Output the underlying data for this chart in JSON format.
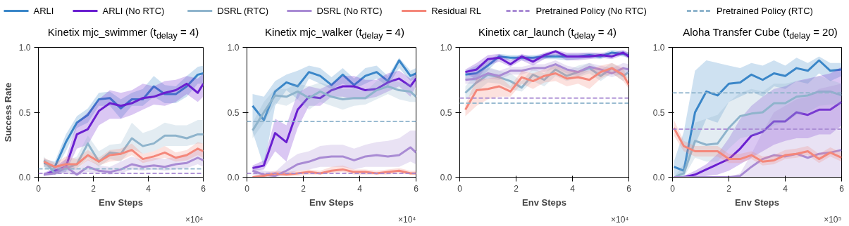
{
  "chart_data": [
    {
      "type": "line",
      "title": "Kinetix mjc_swimmer (t$_{delay}$ = 4)",
      "xlabel": "Env Steps",
      "ylabel": "Success Rate",
      "annotations": [
        "×10⁴"
      ],
      "legend": "top",
      "xlim": [
        0,
        6
      ],
      "xticks": [
        0,
        2,
        4,
        6
      ],
      "ylim": [
        0,
        1
      ],
      "yticks": [
        {
          "value": 0,
          "label": "0.0"
        },
        {
          "value": 0.5,
          "label": "0.5"
        },
        {
          "value": 1,
          "label": "1.0"
        }
      ],
      "x": [
        0.2,
        0.6,
        1.0,
        1.4,
        1.8,
        2.2,
        2.6,
        3.0,
        3.4,
        3.8,
        4.2,
        4.6,
        5.0,
        5.4,
        5.8,
        6.0
      ],
      "series": [
        {
          "name": "ARLI",
          "color": "#3a86c8",
          "values": [
            0.11,
            0.08,
            0.27,
            0.42,
            0.48,
            0.6,
            0.61,
            0.53,
            0.6,
            0.6,
            0.7,
            0.64,
            0.64,
            0.7,
            0.79,
            0.8
          ],
          "lower": [
            0.08,
            0.05,
            0.2,
            0.38,
            0.42,
            0.55,
            0.55,
            0.45,
            0.55,
            0.55,
            0.62,
            0.57,
            0.57,
            0.62,
            0.72,
            0.72
          ],
          "upper": [
            0.14,
            0.12,
            0.33,
            0.47,
            0.53,
            0.65,
            0.66,
            0.6,
            0.65,
            0.68,
            0.78,
            0.71,
            0.7,
            0.78,
            0.85,
            0.86
          ]
        },
        {
          "name": "ARLI (No RTC)",
          "color": "#6a1fd0",
          "values": [
            0.02,
            0.05,
            0.08,
            0.33,
            0.37,
            0.51,
            0.57,
            0.55,
            0.57,
            0.61,
            0.62,
            0.65,
            0.67,
            0.72,
            0.65,
            0.72
          ],
          "lower": [
            0.01,
            0.03,
            0.04,
            0.22,
            0.25,
            0.4,
            0.45,
            0.45,
            0.48,
            0.52,
            0.56,
            0.55,
            0.58,
            0.64,
            0.58,
            0.62
          ],
          "upper": [
            0.03,
            0.08,
            0.14,
            0.42,
            0.5,
            0.6,
            0.67,
            0.65,
            0.67,
            0.72,
            0.7,
            0.74,
            0.75,
            0.78,
            0.76,
            0.8
          ]
        },
        {
          "name": "DSRL (RTC)",
          "color": "#8fb4cc",
          "values": [
            0.13,
            0.03,
            0.07,
            0.1,
            0.26,
            0.12,
            0.19,
            0.18,
            0.3,
            0.24,
            0.26,
            0.32,
            0.32,
            0.3,
            0.33,
            0.33
          ],
          "lower": [
            0.08,
            0.02,
            0.04,
            0.06,
            0.15,
            0.08,
            0.14,
            0.12,
            0.22,
            0.18,
            0.2,
            0.24,
            0.24,
            0.24,
            0.26,
            0.26
          ],
          "upper": [
            0.16,
            0.06,
            0.12,
            0.16,
            0.32,
            0.2,
            0.25,
            0.26,
            0.42,
            0.34,
            0.37,
            0.42,
            0.4,
            0.4,
            0.44,
            0.44
          ]
        },
        {
          "name": "DSRL (No RTC)",
          "color": "#a98bd4",
          "values": [
            0.02,
            0.03,
            0.08,
            0.02,
            0.08,
            0.05,
            0.04,
            0.06,
            0.1,
            0.08,
            0.09,
            0.08,
            0.1,
            0.11,
            0.15,
            0.13
          ],
          "lower": [
            0.01,
            0.02,
            0.03,
            0.01,
            0.04,
            0.03,
            0.02,
            0.03,
            0.06,
            0.05,
            0.06,
            0.05,
            0.06,
            0.07,
            0.1,
            0.08
          ],
          "upper": [
            0.04,
            0.05,
            0.14,
            0.06,
            0.14,
            0.09,
            0.08,
            0.12,
            0.16,
            0.13,
            0.15,
            0.14,
            0.16,
            0.18,
            0.22,
            0.2
          ]
        },
        {
          "name": "Residual RL",
          "color": "#f4877a",
          "values": [
            0.12,
            0.08,
            0.1,
            0.1,
            0.17,
            0.12,
            0.17,
            0.18,
            0.21,
            0.14,
            0.16,
            0.19,
            0.15,
            0.17,
            0.22,
            0.2
          ],
          "lower": [
            0.09,
            0.06,
            0.06,
            0.07,
            0.13,
            0.09,
            0.12,
            0.13,
            0.17,
            0.11,
            0.13,
            0.15,
            0.12,
            0.13,
            0.17,
            0.15
          ],
          "upper": [
            0.15,
            0.11,
            0.16,
            0.14,
            0.21,
            0.15,
            0.21,
            0.22,
            0.26,
            0.18,
            0.2,
            0.24,
            0.19,
            0.21,
            0.27,
            0.26
          ]
        }
      ],
      "ref_lines": [
        {
          "axis": "y",
          "value": 0.03,
          "label": "Pretrained Policy (No RTC)",
          "color": "#a98bd4",
          "line_style": "dashed"
        },
        {
          "axis": "y",
          "value": 0.065,
          "label": "Pretrained Policy (RTC)",
          "color": "#8fb4cc",
          "line_style": "dashed"
        }
      ]
    },
    {
      "type": "line",
      "title": "Kinetix mjc_walker (t$_{delay}$ = 4)",
      "xlabel": "Env Steps",
      "annotations": [
        "×10⁴"
      ],
      "xlim": [
        0,
        6
      ],
      "xticks": [
        0,
        2,
        4,
        6
      ],
      "ylim": [
        0,
        1
      ],
      "yticks": [
        {
          "value": 0,
          "label": "0.0"
        },
        {
          "value": 0.5,
          "label": "0.5"
        },
        {
          "value": 1,
          "label": "1.0"
        }
      ],
      "x": [
        0.2,
        0.6,
        1.0,
        1.4,
        1.8,
        2.2,
        2.6,
        3.0,
        3.4,
        3.8,
        4.2,
        4.6,
        5.0,
        5.4,
        5.8,
        6.0
      ],
      "series": [
        {
          "color": "#3a86c8",
          "values": [
            0.55,
            0.44,
            0.66,
            0.73,
            0.7,
            0.81,
            0.78,
            0.71,
            0.79,
            0.71,
            0.78,
            0.81,
            0.74,
            0.9,
            0.78,
            0.8
          ],
          "lower": [
            0.35,
            0.08,
            0.55,
            0.67,
            0.6,
            0.76,
            0.72,
            0.68,
            0.72,
            0.68,
            0.72,
            0.76,
            0.7,
            0.84,
            0.74,
            0.76
          ],
          "upper": [
            0.64,
            0.62,
            0.74,
            0.79,
            0.82,
            0.86,
            0.84,
            0.77,
            0.84,
            0.76,
            0.84,
            0.86,
            0.78,
            0.92,
            0.82,
            0.84
          ]
        },
        {
          "color": "#6a1fd0",
          "values": [
            0.07,
            0.09,
            0.34,
            0.27,
            0.52,
            0.62,
            0.61,
            0.67,
            0.7,
            0.7,
            0.67,
            0.68,
            0.73,
            0.76,
            0.7,
            0.76
          ],
          "lower": [
            0.05,
            0.06,
            0.2,
            0.12,
            0.38,
            0.55,
            0.55,
            0.62,
            0.62,
            0.6,
            0.6,
            0.62,
            0.66,
            0.7,
            0.62,
            0.7
          ],
          "upper": [
            0.09,
            0.13,
            0.45,
            0.4,
            0.65,
            0.7,
            0.68,
            0.72,
            0.78,
            0.78,
            0.75,
            0.75,
            0.8,
            0.82,
            0.76,
            0.8
          ]
        },
        {
          "color": "#8fb4cc",
          "values": [
            0.36,
            0.5,
            0.63,
            0.62,
            0.66,
            0.61,
            0.66,
            0.62,
            0.6,
            0.61,
            0.61,
            0.67,
            0.7,
            0.67,
            0.66,
            0.62
          ],
          "lower": [
            0.3,
            0.42,
            0.57,
            0.55,
            0.6,
            0.52,
            0.58,
            0.55,
            0.52,
            0.55,
            0.56,
            0.6,
            0.64,
            0.6,
            0.58,
            0.58
          ],
          "upper": [
            0.42,
            0.58,
            0.68,
            0.68,
            0.72,
            0.7,
            0.73,
            0.7,
            0.68,
            0.68,
            0.66,
            0.74,
            0.76,
            0.73,
            0.72,
            0.67
          ]
        },
        {
          "color": "#a98bd4",
          "values": [
            0.05,
            0.02,
            0.01,
            0.05,
            0.1,
            0.12,
            0.15,
            0.16,
            0.16,
            0.13,
            0.16,
            0.17,
            0.16,
            0.17,
            0.23,
            0.19
          ],
          "lower": [
            0.02,
            0.0,
            0.0,
            0.02,
            0.05,
            0.06,
            0.08,
            0.08,
            0.08,
            0.06,
            0.08,
            0.08,
            0.08,
            0.08,
            0.12,
            0.1
          ],
          "upper": [
            0.08,
            0.05,
            0.04,
            0.12,
            0.18,
            0.2,
            0.24,
            0.25,
            0.25,
            0.22,
            0.25,
            0.27,
            0.28,
            0.3,
            0.36,
            0.36
          ]
        },
        {
          "color": "#f4877a",
          "values": [
            0.0,
            0.01,
            0.03,
            0.02,
            0.03,
            0.04,
            0.03,
            0.05,
            0.06,
            0.04,
            0.04,
            0.03,
            0.04,
            0.05,
            0.03,
            0.03
          ],
          "lower": [
            0.0,
            0.0,
            0.01,
            0.01,
            0.01,
            0.02,
            0.02,
            0.03,
            0.04,
            0.02,
            0.02,
            0.02,
            0.02,
            0.03,
            0.02,
            0.02
          ],
          "upper": [
            0.01,
            0.03,
            0.05,
            0.04,
            0.05,
            0.06,
            0.05,
            0.08,
            0.09,
            0.06,
            0.06,
            0.05,
            0.06,
            0.07,
            0.05,
            0.05
          ]
        }
      ],
      "ref_lines": [
        {
          "axis": "y",
          "value": 0.03,
          "color": "#a98bd4",
          "line_style": "dashed"
        },
        {
          "axis": "y",
          "value": 0.43,
          "color": "#8fb4cc",
          "line_style": "dashed"
        }
      ]
    },
    {
      "type": "line",
      "title": "Kinetix car_launch (t$_{delay}$ = 4)",
      "xlabel": "Env Steps",
      "annotations": [
        "×10⁴"
      ],
      "xlim": [
        0,
        6
      ],
      "xticks": [
        0,
        2,
        4,
        6
      ],
      "ylim": [
        0,
        1
      ],
      "yticks": [
        {
          "value": 0,
          "label": "0.0"
        },
        {
          "value": 0.5,
          "label": "0.5"
        },
        {
          "value": 1,
          "label": "1.0"
        }
      ],
      "x": [
        0.2,
        0.6,
        1.0,
        1.4,
        1.8,
        2.2,
        2.6,
        3.0,
        3.4,
        3.8,
        4.2,
        4.6,
        5.0,
        5.4,
        5.8,
        6.0
      ],
      "series": [
        {
          "color": "#3a86c8",
          "values": [
            0.79,
            0.8,
            0.86,
            0.93,
            0.92,
            0.92,
            0.92,
            0.93,
            0.93,
            0.93,
            0.93,
            0.94,
            0.93,
            0.96,
            0.95,
            0.94
          ],
          "lower": [
            0.75,
            0.74,
            0.82,
            0.91,
            0.9,
            0.9,
            0.89,
            0.91,
            0.91,
            0.9,
            0.91,
            0.92,
            0.91,
            0.94,
            0.93,
            0.92
          ],
          "upper": [
            0.82,
            0.86,
            0.9,
            0.95,
            0.94,
            0.94,
            0.94,
            0.95,
            0.95,
            0.95,
            0.95,
            0.96,
            0.95,
            0.98,
            0.97,
            0.96
          ]
        },
        {
          "color": "#6a1fd0",
          "values": [
            0.81,
            0.83,
            0.91,
            0.92,
            0.87,
            0.93,
            0.89,
            0.94,
            0.97,
            0.93,
            0.93,
            0.93,
            0.94,
            0.93,
            0.96,
            0.93
          ],
          "lower": [
            0.8,
            0.75,
            0.86,
            0.89,
            0.85,
            0.9,
            0.86,
            0.91,
            0.94,
            0.9,
            0.9,
            0.91,
            0.92,
            0.91,
            0.94,
            0.91
          ],
          "upper": [
            0.83,
            0.88,
            0.94,
            0.95,
            0.9,
            0.95,
            0.92,
            0.96,
            0.98,
            0.96,
            0.96,
            0.96,
            0.96,
            0.96,
            0.98,
            0.96
          ]
        },
        {
          "color": "#8fb4cc",
          "values": [
            0.65,
            0.73,
            0.79,
            0.77,
            0.74,
            0.69,
            0.79,
            0.75,
            0.83,
            0.78,
            0.81,
            0.84,
            0.78,
            0.84,
            0.78,
            0.81
          ],
          "lower": [
            0.6,
            0.66,
            0.73,
            0.72,
            0.68,
            0.66,
            0.74,
            0.7,
            0.78,
            0.74,
            0.77,
            0.8,
            0.74,
            0.8,
            0.74,
            0.77
          ],
          "upper": [
            0.7,
            0.8,
            0.85,
            0.82,
            0.8,
            0.74,
            0.84,
            0.8,
            0.88,
            0.82,
            0.86,
            0.88,
            0.83,
            0.88,
            0.83,
            0.85
          ]
        },
        {
          "color": "#a98bd4",
          "values": [
            0.75,
            0.76,
            0.8,
            0.78,
            0.82,
            0.82,
            0.84,
            0.84,
            0.87,
            0.83,
            0.81,
            0.85,
            0.83,
            0.8,
            0.84,
            0.83
          ],
          "lower": [
            0.72,
            0.72,
            0.76,
            0.75,
            0.79,
            0.79,
            0.82,
            0.81,
            0.84,
            0.8,
            0.78,
            0.82,
            0.8,
            0.77,
            0.8,
            0.79
          ],
          "upper": [
            0.78,
            0.8,
            0.84,
            0.82,
            0.85,
            0.85,
            0.87,
            0.87,
            0.9,
            0.86,
            0.84,
            0.88,
            0.86,
            0.84,
            0.88,
            0.87
          ]
        },
        {
          "color": "#f4877a",
          "values": [
            0.52,
            0.67,
            0.68,
            0.7,
            0.66,
            0.77,
            0.74,
            0.78,
            0.8,
            0.76,
            0.77,
            0.75,
            0.81,
            0.84,
            0.79,
            0.71
          ],
          "lower": [
            0.47,
            0.55,
            0.6,
            0.62,
            0.62,
            0.72,
            0.68,
            0.73,
            0.74,
            0.7,
            0.72,
            0.68,
            0.76,
            0.8,
            0.74,
            0.68
          ],
          "upper": [
            0.56,
            0.76,
            0.76,
            0.78,
            0.7,
            0.82,
            0.8,
            0.83,
            0.86,
            0.82,
            0.82,
            0.82,
            0.86,
            0.88,
            0.84,
            0.74
          ]
        }
      ],
      "ref_lines": [
        {
          "axis": "y",
          "value": 0.61,
          "color": "#a98bd4",
          "line_style": "dashed"
        },
        {
          "axis": "y",
          "value": 0.57,
          "color": "#8fb4cc",
          "line_style": "dashed"
        }
      ]
    },
    {
      "type": "line",
      "title": "Aloha Transfer Cube (t$_{delay}$ = 20)",
      "xlabel": "Env Steps",
      "annotations": [
        "×10⁵"
      ],
      "xlim": [
        0,
        6
      ],
      "xticks": [
        0,
        2,
        4,
        6
      ],
      "ylim": [
        0,
        1
      ],
      "yticks": [
        {
          "value": 0,
          "label": "0.0"
        },
        {
          "value": 0.5,
          "label": "0.5"
        },
        {
          "value": 1,
          "label": "1.0"
        }
      ],
      "x": [
        0.05,
        0.4,
        0.8,
        1.2,
        1.6,
        2.0,
        2.4,
        2.8,
        3.2,
        3.6,
        4.0,
        4.4,
        4.8,
        5.2,
        5.6,
        6.0
      ],
      "series": [
        {
          "color": "#3a86c8",
          "values": [
            0.08,
            0.05,
            0.5,
            0.66,
            0.63,
            0.72,
            0.73,
            0.79,
            0.75,
            0.8,
            0.78,
            0.84,
            0.82,
            0.9,
            0.82,
            0.83
          ],
          "lower": [
            0.02,
            0.0,
            0.25,
            0.45,
            0.42,
            0.58,
            0.62,
            0.66,
            0.62,
            0.7,
            0.68,
            0.74,
            0.72,
            0.8,
            0.74,
            0.78
          ],
          "upper": [
            0.12,
            0.35,
            0.82,
            0.9,
            0.88,
            0.86,
            0.84,
            0.88,
            0.86,
            0.9,
            0.86,
            0.92,
            0.88,
            0.93,
            0.88,
            0.88
          ]
        },
        {
          "color": "#6a1fd0",
          "values": [
            0.0,
            0.0,
            0.02,
            0.06,
            0.1,
            0.14,
            0.22,
            0.32,
            0.35,
            0.43,
            0.43,
            0.5,
            0.48,
            0.52,
            0.52,
            0.58
          ],
          "lower": [
            0.0,
            0.0,
            0.0,
            0.01,
            0.02,
            0.05,
            0.1,
            0.15,
            0.2,
            0.25,
            0.28,
            0.3,
            0.3,
            0.33,
            0.33,
            0.4
          ],
          "upper": [
            0.0,
            0.01,
            0.05,
            0.1,
            0.18,
            0.3,
            0.45,
            0.55,
            0.62,
            0.68,
            0.7,
            0.74,
            0.76,
            0.78,
            0.8,
            0.85
          ]
        },
        {
          "color": "#8fb4cc",
          "values": [
            0.0,
            0.03,
            0.28,
            0.25,
            0.26,
            0.38,
            0.47,
            0.49,
            0.5,
            0.57,
            0.57,
            0.62,
            0.63,
            0.66,
            0.66,
            0.63
          ],
          "lower": [
            0.0,
            0.0,
            0.15,
            0.12,
            0.12,
            0.22,
            0.3,
            0.32,
            0.34,
            0.4,
            0.42,
            0.48,
            0.5,
            0.55,
            0.56,
            0.56
          ],
          "upper": [
            0.0,
            0.1,
            0.42,
            0.45,
            0.48,
            0.58,
            0.65,
            0.68,
            0.66,
            0.72,
            0.72,
            0.74,
            0.75,
            0.78,
            0.75,
            0.72
          ]
        },
        {
          "color": "#a98bd4",
          "values": [
            0.0,
            0.0,
            0.0,
            0.0,
            0.0,
            0.0,
            0.01,
            0.08,
            0.14,
            0.17,
            0.16,
            0.18,
            0.15,
            0.18,
            0.19,
            0.21
          ],
          "lower": [
            0.0,
            0.0,
            0.0,
            0.0,
            0.0,
            0.0,
            0.0,
            0.0,
            0.0,
            0.0,
            0.0,
            0.0,
            0.0,
            0.0,
            0.0,
            0.0
          ],
          "upper": [
            0.0,
            0.0,
            0.0,
            0.0,
            0.0,
            0.0,
            0.03,
            0.18,
            0.35,
            0.5,
            0.55,
            0.6,
            0.62,
            0.68,
            0.7,
            0.72
          ]
        },
        {
          "color": "#f4877a",
          "values": [
            0.38,
            0.24,
            0.2,
            0.2,
            0.2,
            0.14,
            0.14,
            0.17,
            0.12,
            0.13,
            0.17,
            0.18,
            0.2,
            0.14,
            0.19,
            0.15
          ],
          "lower": [
            0.32,
            0.2,
            0.16,
            0.16,
            0.16,
            0.11,
            0.11,
            0.14,
            0.09,
            0.1,
            0.14,
            0.15,
            0.17,
            0.11,
            0.16,
            0.12
          ],
          "upper": [
            0.44,
            0.28,
            0.24,
            0.24,
            0.24,
            0.18,
            0.18,
            0.2,
            0.16,
            0.17,
            0.21,
            0.22,
            0.24,
            0.18,
            0.23,
            0.19
          ]
        }
      ],
      "ref_lines": [
        {
          "axis": "y",
          "value": 0.37,
          "color": "#a98bd4",
          "line_style": "dashed"
        },
        {
          "axis": "y",
          "value": 0.65,
          "color": "#8fb4cc",
          "line_style": "dashed"
        }
      ]
    }
  ]
}
